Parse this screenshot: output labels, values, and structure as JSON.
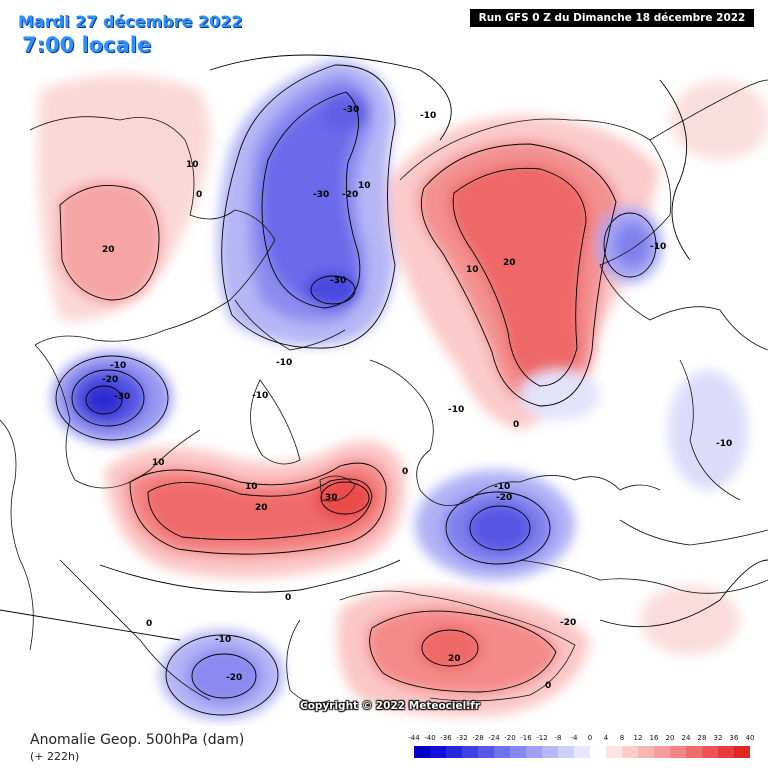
{
  "header": {
    "date": "Mardi 27 décembre 2022",
    "local_time": "7:00 locale",
    "run": "Run GFS 0 Z du Dimanche 18 décembre 2022"
  },
  "footer": {
    "product": "Anomalie Geop. 500hPa (dam)",
    "lead": "(+ 222h)",
    "copyright": "Copyright © 2022 Meteociel.fr"
  },
  "scale": {
    "labels": [
      "-44",
      "-40",
      "-36",
      "-32",
      "-28",
      "-24",
      "-20",
      "-16",
      "-12",
      "-8",
      "-4",
      "0",
      "4",
      "8",
      "12",
      "16",
      "20",
      "24",
      "28",
      "32",
      "36",
      "40"
    ],
    "colors": [
      "#0000c8",
      "#1010d8",
      "#2828e0",
      "#4040e6",
      "#5858ec",
      "#7070f0",
      "#8888f4",
      "#a0a0f6",
      "#b8b8f8",
      "#d0d0fa",
      "#e6e6fc",
      "#ffffff",
      "#fce4e4",
      "#fccccc",
      "#fab4b4",
      "#f89c9c",
      "#f68484",
      "#f26c6c",
      "#ee5454",
      "#ea3c3c",
      "#e42424"
    ]
  },
  "anomaly_labels": [
    "-30",
    "-30",
    "-20",
    "-10",
    "-30",
    "-10",
    "-20",
    "-30",
    "10",
    "0",
    "20",
    "10",
    "-10",
    "-10",
    "10",
    "20",
    "0",
    "-10",
    "-10",
    "0",
    "10",
    "-10",
    "-20",
    "10",
    "20",
    "30",
    "0",
    "0",
    "-10",
    "-20",
    "20",
    "0",
    "-20",
    "-10"
  ]
}
